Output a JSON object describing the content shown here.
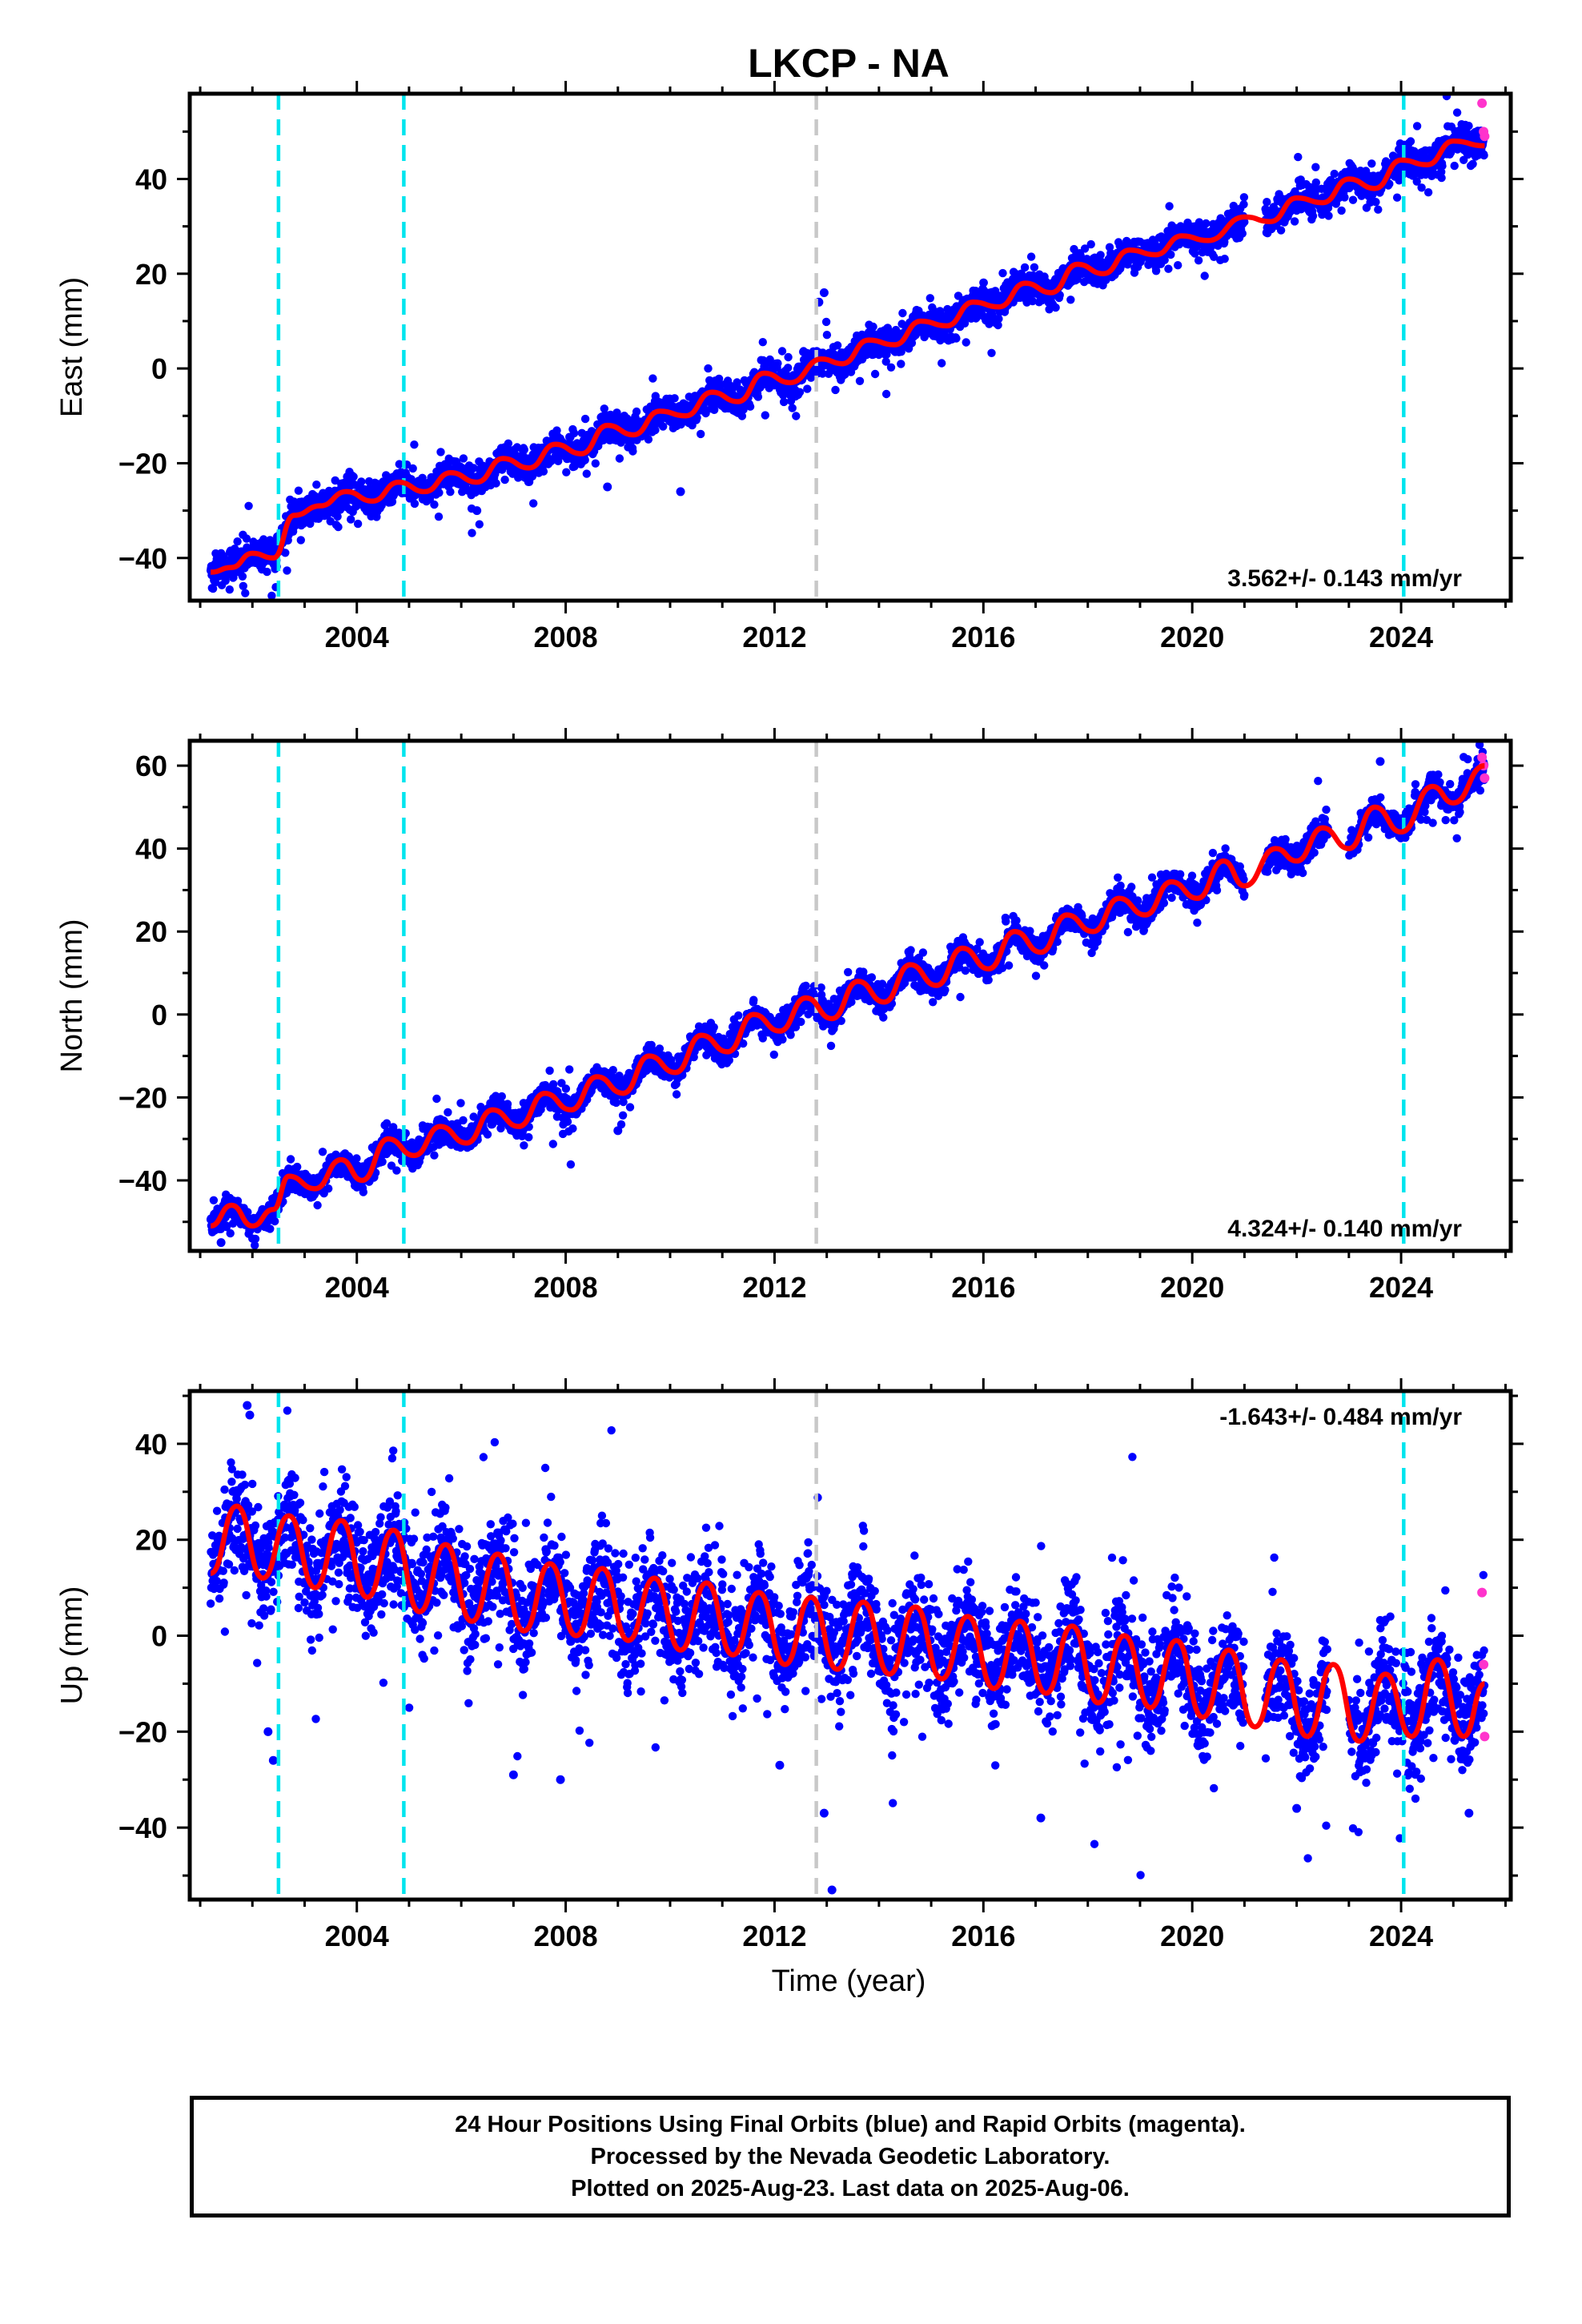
{
  "title": "LKCP - NA",
  "xlabel": "Time (year)",
  "footer": {
    "line1": "24 Hour Positions Using Final Orbits (blue) and Rapid Orbits (magenta).",
    "line2": "Processed by the Nevada Geodetic Laboratory.",
    "line3": "Plotted on 2025-Aug-23. Last data on 2025-Aug-06."
  },
  "colors": {
    "final": "#0000ff",
    "rapid": "#ff33cc",
    "model": "#ff0000",
    "equipment": "#00e5ee",
    "unknown": "#c8c8c8"
  },
  "chart_data": [
    {
      "type": "scatter",
      "component": "east",
      "ylabel": "East (mm)",
      "rate": "3.562+/- 0.143 mm/yr",
      "rate_position": "bottom-right",
      "xlim": [
        2000.8,
        2026.1
      ],
      "ylim": [
        -49,
        58
      ],
      "x_ticks": [
        2004,
        2008,
        2012,
        2016,
        2020,
        2024
      ],
      "y_ticks": [
        -40,
        -20,
        0,
        20,
        40
      ],
      "model_points": [
        [
          2001.2,
          -43
        ],
        [
          2001.6,
          -42
        ],
        [
          2002.0,
          -39
        ],
        [
          2002.4,
          -40
        ],
        [
          2002.8,
          -31
        ],
        [
          2003.3,
          -29
        ],
        [
          2003.8,
          -26
        ],
        [
          2004.3,
          -28
        ],
        [
          2004.8,
          -24
        ],
        [
          2005.3,
          -26
        ],
        [
          2005.8,
          -22
        ],
        [
          2006.3,
          -24
        ],
        [
          2006.8,
          -19
        ],
        [
          2007.3,
          -21
        ],
        [
          2007.8,
          -16
        ],
        [
          2008.3,
          -18
        ],
        [
          2008.8,
          -12
        ],
        [
          2009.3,
          -14
        ],
        [
          2009.8,
          -9
        ],
        [
          2010.3,
          -10
        ],
        [
          2010.8,
          -5
        ],
        [
          2011.3,
          -7
        ],
        [
          2011.8,
          -1
        ],
        [
          2012.3,
          -3
        ],
        [
          2012.9,
          2
        ],
        [
          2013.3,
          1
        ],
        [
          2013.8,
          6
        ],
        [
          2014.3,
          5
        ],
        [
          2014.8,
          10
        ],
        [
          2015.3,
          9
        ],
        [
          2015.8,
          14
        ],
        [
          2016.3,
          13
        ],
        [
          2016.8,
          18
        ],
        [
          2017.3,
          16
        ],
        [
          2017.8,
          22
        ],
        [
          2018.3,
          20
        ],
        [
          2018.8,
          25
        ],
        [
          2019.3,
          24
        ],
        [
          2019.8,
          28
        ],
        [
          2020.3,
          27
        ],
        [
          2021.0,
          32
        ],
        [
          2021.5,
          31
        ],
        [
          2022.0,
          36
        ],
        [
          2022.5,
          35
        ],
        [
          2023.0,
          40
        ],
        [
          2023.5,
          38
        ],
        [
          2024.0,
          44
        ],
        [
          2024.5,
          43
        ],
        [
          2025.0,
          48
        ],
        [
          2025.6,
          47
        ]
      ],
      "trend": {
        "x0": 2001.2,
        "y0": -42,
        "x1": 2025.6,
        "y1": 47
      },
      "scatter": {
        "amplitude": 2.2,
        "noise": 1.6,
        "outliers": [
          [
            2012.95,
            16
          ],
          [
            2012.85,
            14
          ],
          [
            2008.8,
            -25
          ],
          [
            2006.3,
            -30
          ],
          [
            2010.2,
            -26
          ]
        ]
      },
      "rapid_points": [
        [
          2025.55,
          56
        ],
        [
          2025.58,
          50
        ],
        [
          2025.6,
          49
        ]
      ],
      "gaps": [
        [
          2021.0,
          2021.4
        ]
      ],
      "offsets": [
        {
          "x": 2002.5,
          "kind": "equipment"
        },
        {
          "x": 2004.9,
          "kind": "equipment"
        },
        {
          "x": 2012.8,
          "kind": "unknown"
        },
        {
          "x": 2024.05,
          "kind": "equipment"
        }
      ]
    },
    {
      "type": "scatter",
      "component": "north",
      "ylabel": "North (mm)",
      "rate": "4.324+/- 0.140 mm/yr",
      "rate_position": "bottom-right",
      "xlim": [
        2000.8,
        2026.1
      ],
      "ylim": [
        -57,
        66
      ],
      "x_ticks": [
        2004,
        2008,
        2012,
        2016,
        2020,
        2024
      ],
      "y_ticks": [
        -40,
        -20,
        0,
        20,
        40,
        60
      ],
      "model_points": [
        [
          2001.2,
          -51
        ],
        [
          2001.6,
          -46
        ],
        [
          2002.0,
          -51
        ],
        [
          2002.4,
          -47
        ],
        [
          2002.7,
          -39
        ],
        [
          2003.2,
          -42
        ],
        [
          2003.7,
          -35
        ],
        [
          2004.1,
          -40
        ],
        [
          2004.6,
          -30
        ],
        [
          2005.1,
          -34
        ],
        [
          2005.6,
          -27
        ],
        [
          2006.1,
          -31
        ],
        [
          2006.6,
          -23
        ],
        [
          2007.1,
          -27
        ],
        [
          2007.6,
          -19
        ],
        [
          2008.1,
          -23
        ],
        [
          2008.6,
          -15
        ],
        [
          2009.1,
          -19
        ],
        [
          2009.6,
          -10
        ],
        [
          2010.1,
          -14
        ],
        [
          2010.6,
          -5
        ],
        [
          2011.1,
          -9
        ],
        [
          2011.6,
          0
        ],
        [
          2012.1,
          -4
        ],
        [
          2012.6,
          4
        ],
        [
          2013.1,
          -1
        ],
        [
          2013.6,
          8
        ],
        [
          2014.1,
          3
        ],
        [
          2014.6,
          12
        ],
        [
          2015.1,
          7
        ],
        [
          2015.6,
          16
        ],
        [
          2016.1,
          11
        ],
        [
          2016.6,
          20
        ],
        [
          2017.1,
          15
        ],
        [
          2017.6,
          24
        ],
        [
          2018.1,
          20
        ],
        [
          2018.6,
          28
        ],
        [
          2019.1,
          24
        ],
        [
          2019.6,
          32
        ],
        [
          2020.1,
          28
        ],
        [
          2020.6,
          37
        ],
        [
          2021.0,
          31
        ],
        [
          2021.6,
          40
        ],
        [
          2022.0,
          37
        ],
        [
          2022.5,
          45
        ],
        [
          2023.0,
          40
        ],
        [
          2023.5,
          50
        ],
        [
          2024.0,
          44
        ],
        [
          2024.6,
          55
        ],
        [
          2025.0,
          51
        ],
        [
          2025.6,
          60
        ]
      ],
      "trend": {
        "x0": 2001.2,
        "y0": -51,
        "x1": 2025.6,
        "y1": 60
      },
      "scatter": {
        "amplitude": 3.6,
        "noise": 1.6,
        "outliers": [
          [
            2023.6,
            61
          ],
          [
            2009.0,
            -28
          ],
          [
            2008.2,
            -24
          ],
          [
            2001.4,
            -55
          ]
        ]
      },
      "rapid_points": [
        [
          2025.55,
          62
        ],
        [
          2025.58,
          60
        ],
        [
          2025.6,
          57
        ]
      ],
      "gaps": [
        [
          2021.0,
          2021.4
        ],
        [
          2022.6,
          2023.0
        ]
      ],
      "offsets": [
        {
          "x": 2002.5,
          "kind": "equipment"
        },
        {
          "x": 2004.9,
          "kind": "equipment"
        },
        {
          "x": 2012.8,
          "kind": "unknown"
        },
        {
          "x": 2024.05,
          "kind": "equipment"
        }
      ]
    },
    {
      "type": "scatter",
      "component": "up",
      "ylabel": "Up (mm)",
      "rate": "-1.643+/- 0.484 mm/yr",
      "rate_position": "top-right",
      "xlim": [
        2000.8,
        2026.1
      ],
      "ylim": [
        -55,
        51
      ],
      "x_ticks": [
        2004,
        2008,
        2012,
        2016,
        2020,
        2024
      ],
      "y_ticks": [
        -40,
        -20,
        0,
        20,
        40
      ],
      "model_points": [
        [
          2001.2,
          13
        ],
        [
          2001.7,
          27
        ],
        [
          2002.2,
          12
        ],
        [
          2002.7,
          25
        ],
        [
          2003.2,
          10
        ],
        [
          2003.7,
          24
        ],
        [
          2004.2,
          8
        ],
        [
          2004.7,
          22
        ],
        [
          2005.2,
          5
        ],
        [
          2005.7,
          19
        ],
        [
          2006.2,
          3
        ],
        [
          2006.7,
          17
        ],
        [
          2007.2,
          1
        ],
        [
          2007.7,
          15
        ],
        [
          2008.2,
          0
        ],
        [
          2008.7,
          14
        ],
        [
          2009.2,
          -1
        ],
        [
          2009.7,
          12
        ],
        [
          2010.2,
          -3
        ],
        [
          2010.7,
          11
        ],
        [
          2011.2,
          -4
        ],
        [
          2011.7,
          9
        ],
        [
          2012.2,
          -6
        ],
        [
          2012.7,
          8
        ],
        [
          2013.2,
          -7
        ],
        [
          2013.7,
          7
        ],
        [
          2014.2,
          -8
        ],
        [
          2014.7,
          6
        ],
        [
          2015.2,
          -9
        ],
        [
          2015.7,
          4
        ],
        [
          2016.2,
          -11
        ],
        [
          2016.7,
          3
        ],
        [
          2017.2,
          -12
        ],
        [
          2017.7,
          2
        ],
        [
          2018.2,
          -14
        ],
        [
          2018.7,
          0
        ],
        [
          2019.2,
          -15
        ],
        [
          2019.7,
          -1
        ],
        [
          2020.2,
          -17
        ],
        [
          2020.7,
          -3
        ],
        [
          2021.2,
          -19
        ],
        [
          2021.7,
          -5
        ],
        [
          2022.2,
          -21
        ],
        [
          2022.7,
          -6
        ],
        [
          2023.2,
          -22
        ],
        [
          2023.7,
          -8
        ],
        [
          2024.2,
          -21
        ],
        [
          2024.7,
          -5
        ],
        [
          2025.2,
          -21
        ],
        [
          2025.6,
          -10
        ]
      ],
      "trend": {
        "x0": 2001.2,
        "y0": 20,
        "x1": 2025.6,
        "y1": -17
      },
      "scatter": {
        "amplitude": 7.5,
        "noise": 5.5,
        "outliers": [
          [
            2001.9,
            48
          ],
          [
            2001.95,
            46
          ],
          [
            2002.4,
            -26
          ],
          [
            2002.3,
            -20
          ],
          [
            2007.0,
            -29
          ],
          [
            2007.9,
            -30
          ],
          [
            2012.95,
            -37
          ],
          [
            2013.1,
            -53
          ],
          [
            2017.1,
            -38
          ],
          [
            2022.0,
            -36
          ],
          [
            2012.1,
            -27
          ],
          [
            2025.3,
            -37
          ]
        ]
      },
      "rapid_points": [
        [
          2025.55,
          9
        ],
        [
          2025.58,
          -6
        ],
        [
          2025.6,
          -21
        ]
      ],
      "gaps": [
        [
          2021.0,
          2021.4
        ],
        [
          2022.6,
          2023.0
        ]
      ],
      "offsets": [
        {
          "x": 2002.5,
          "kind": "equipment"
        },
        {
          "x": 2004.9,
          "kind": "equipment"
        },
        {
          "x": 2012.8,
          "kind": "unknown"
        },
        {
          "x": 2024.05,
          "kind": "equipment"
        }
      ]
    }
  ]
}
